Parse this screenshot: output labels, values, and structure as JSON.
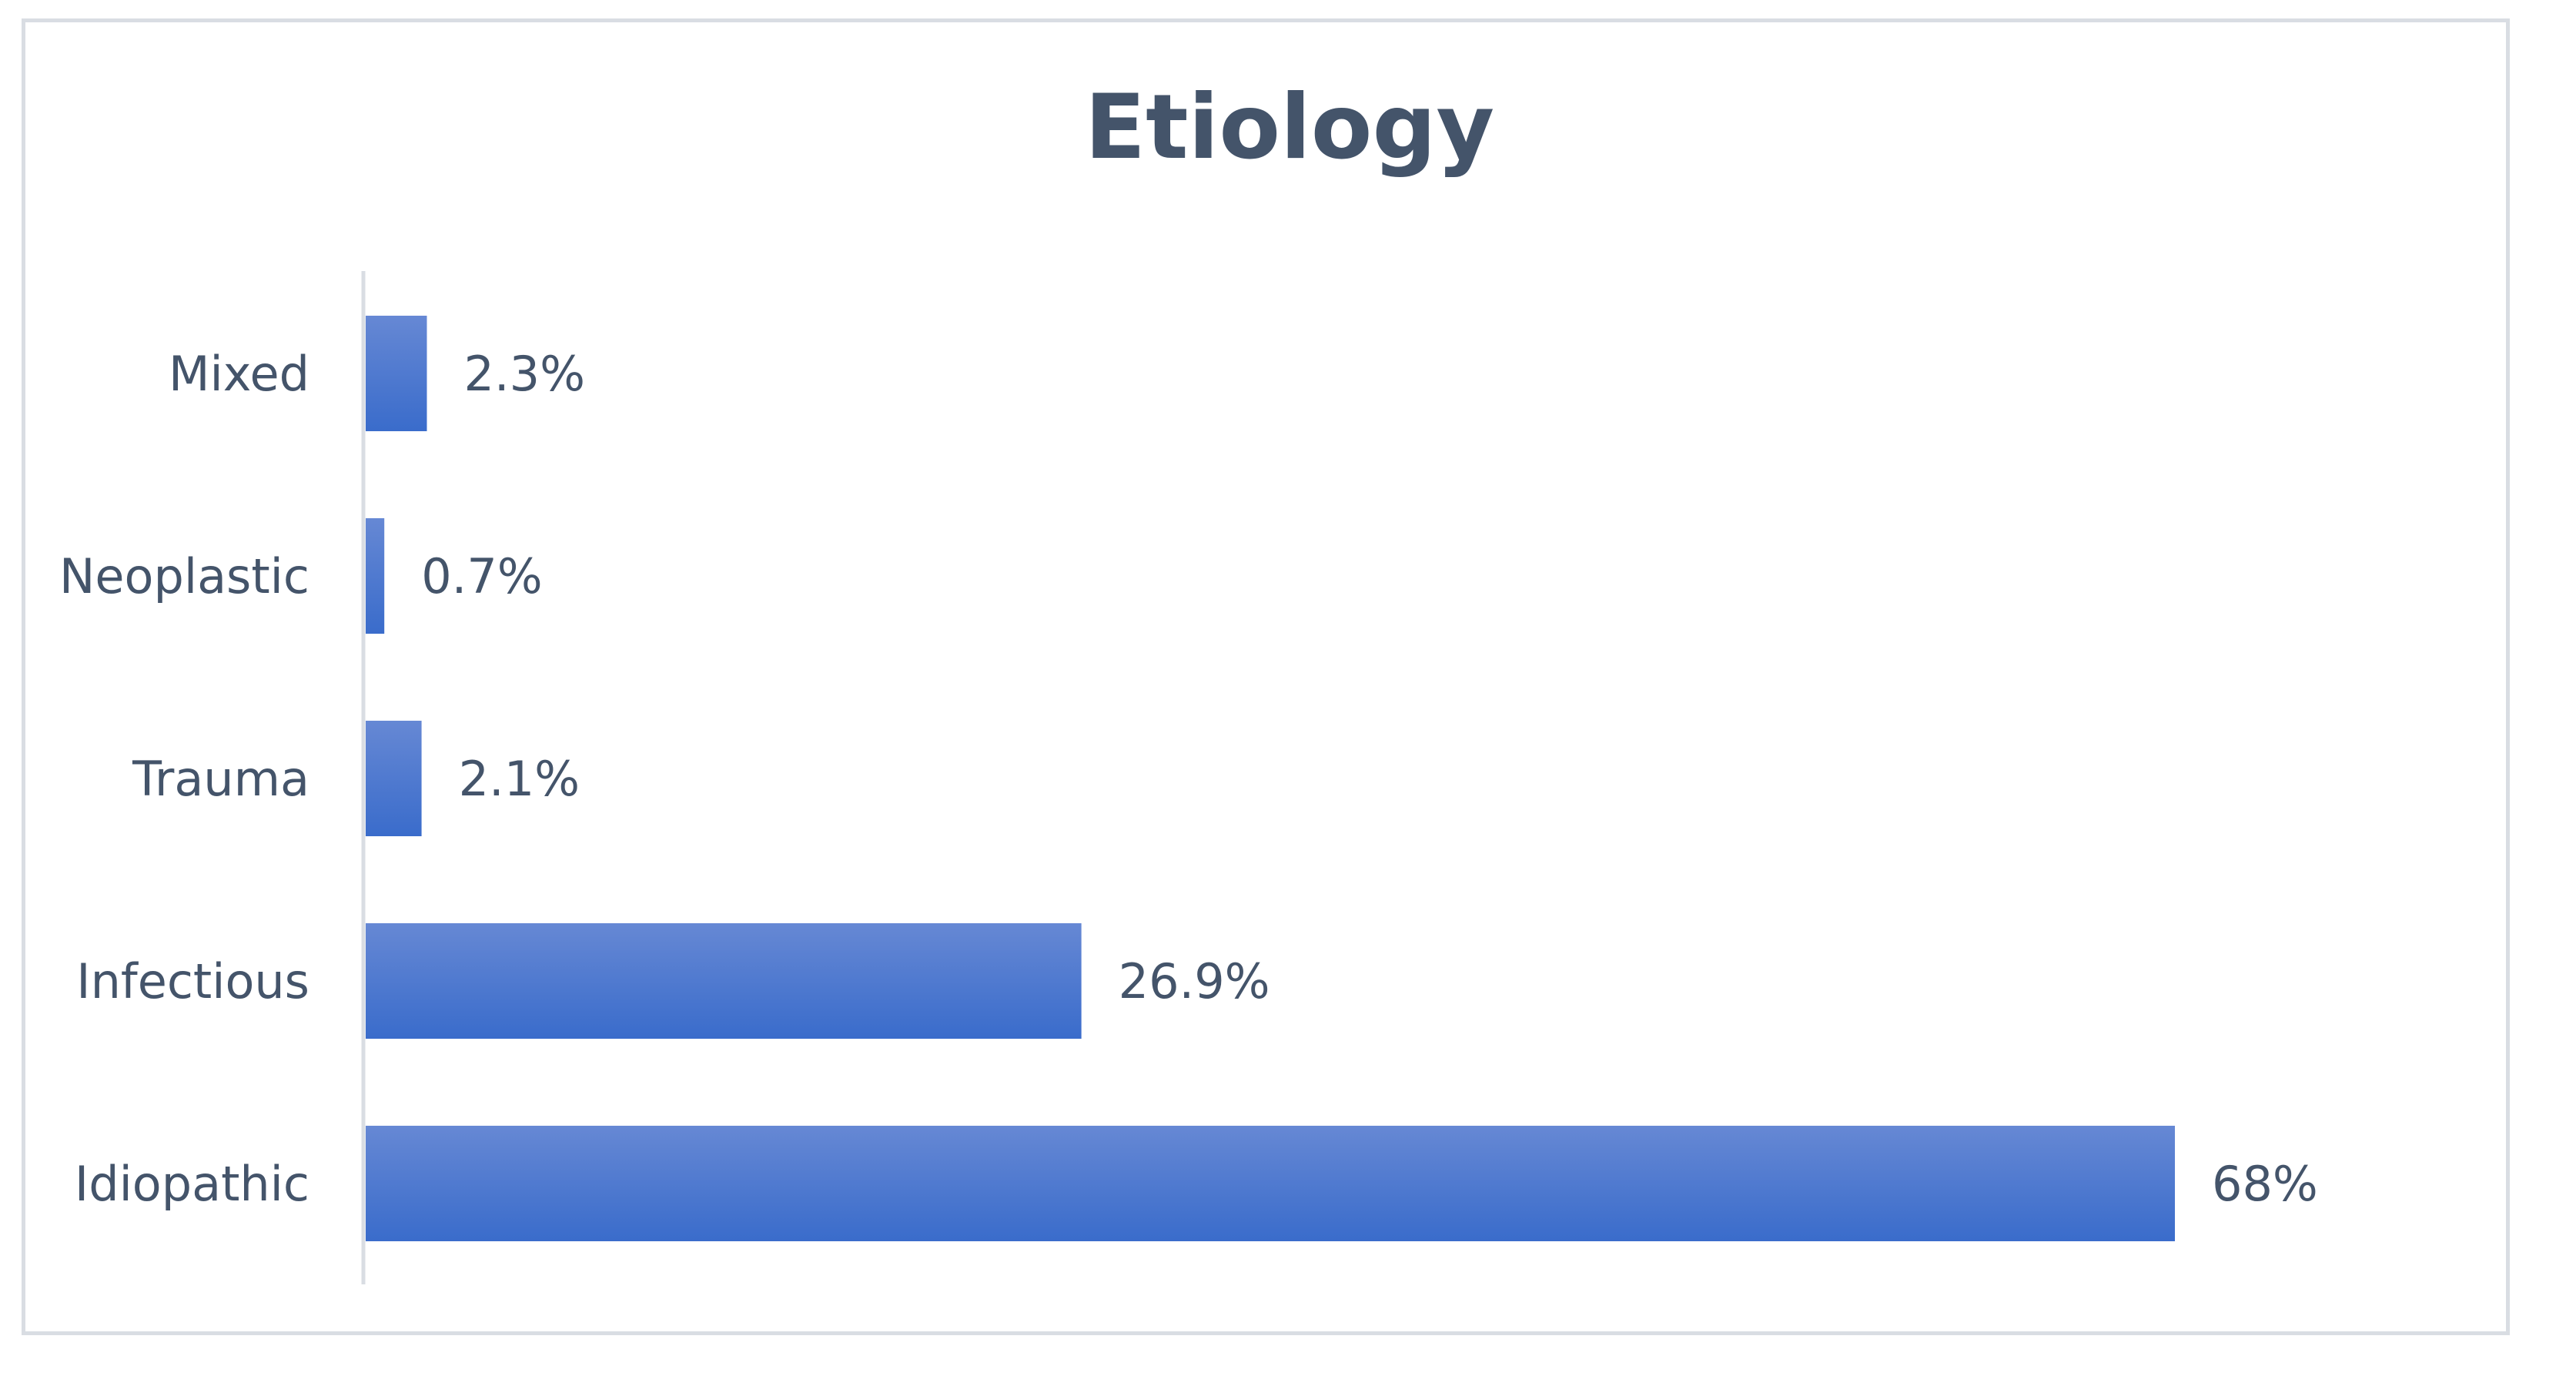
{
  "chart_data": {
    "type": "bar",
    "orientation": "horizontal",
    "title": "Etiology",
    "categories": [
      "Mixed",
      "Neoplastic",
      "Trauma",
      "Infectious",
      "Idiopathic"
    ],
    "values": [
      2.3,
      0.7,
      2.1,
      26.9,
      68
    ],
    "value_labels": [
      "2.3%",
      "0.7%",
      "2.1%",
      "26.9%",
      "68%"
    ],
    "xlabel": "",
    "ylabel": "",
    "xlim": [
      0,
      70
    ],
    "grid": false,
    "legend": "none",
    "colors": {
      "bar_top": "#6688d4",
      "bar_bottom": "#3a6ccb",
      "text": "#44546a",
      "axis": "#d9dde3",
      "frame": "#d9dde3"
    }
  }
}
